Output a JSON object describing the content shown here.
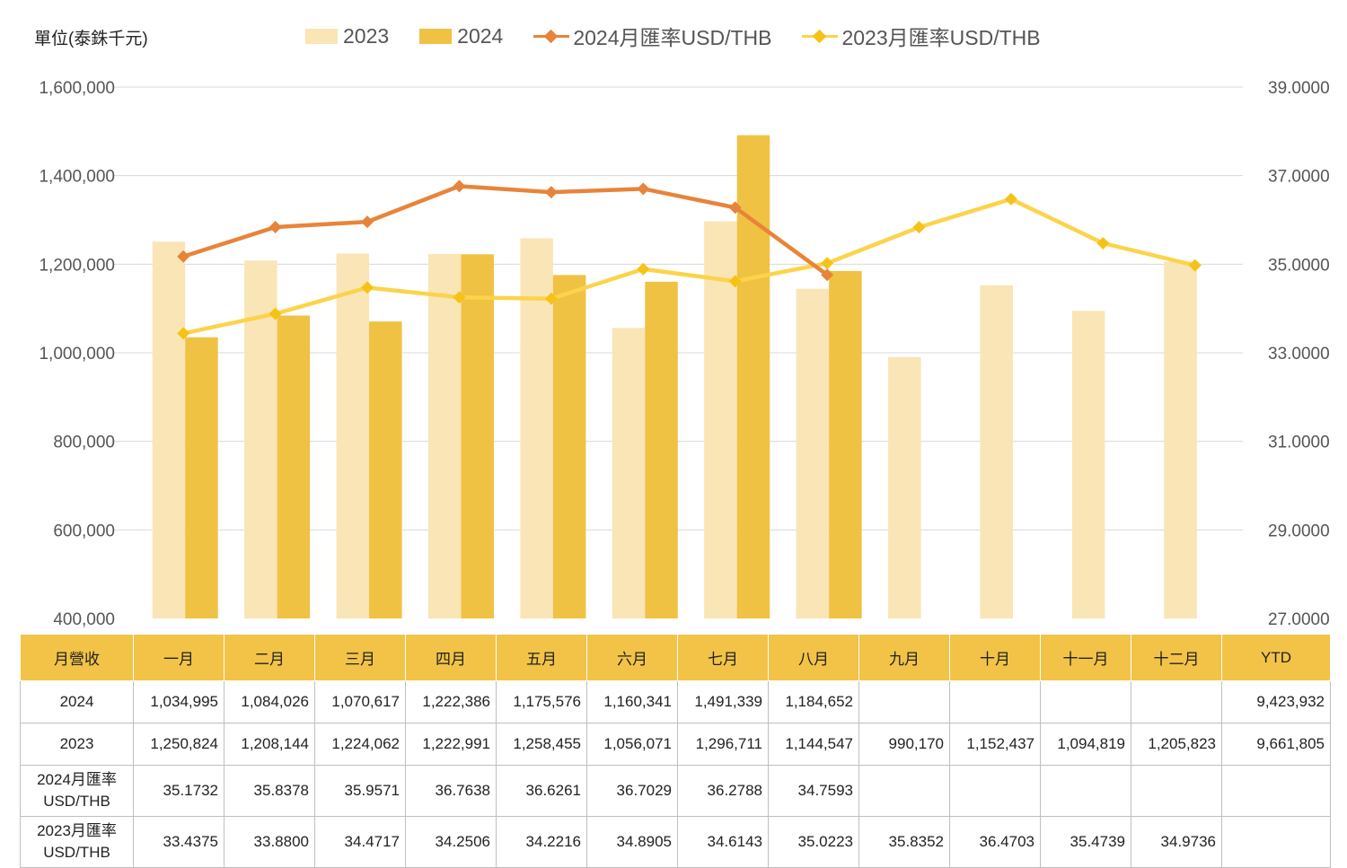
{
  "unit_label": "單位(泰銖千元)",
  "legend": {
    "bar_2023": "2023",
    "bar_2024": "2024",
    "line_2024": "2024月匯率USD/THB",
    "line_2023": "2023月匯率USD/THB"
  },
  "colors": {
    "bar_2023": "#F9E5B6",
    "bar_2024": "#F0C243",
    "line_2024": "#E8843A",
    "line_2023": "#FCD34A",
    "marker_2023": "#F5C316",
    "gridline": "#d9d9d9",
    "header_fill": "#F2C347"
  },
  "chart_data": {
    "type": "bar",
    "categories": [
      "一月",
      "二月",
      "三月",
      "四月",
      "五月",
      "六月",
      "七月",
      "八月",
      "九月",
      "十月",
      "十一月",
      "十二月"
    ],
    "series": [
      {
        "name": "2023",
        "type": "bar",
        "axis": "left",
        "values": [
          1250824,
          1208144,
          1224062,
          1222991,
          1258455,
          1056071,
          1296711,
          1144547,
          990170,
          1152437,
          1094819,
          1205823
        ]
      },
      {
        "name": "2024",
        "type": "bar",
        "axis": "left",
        "values": [
          1034995,
          1084026,
          1070617,
          1222386,
          1175576,
          1160341,
          1491339,
          1184652,
          null,
          null,
          null,
          null
        ]
      },
      {
        "name": "2024月匯率USD/THB",
        "type": "line",
        "axis": "right",
        "values": [
          35.1732,
          35.8378,
          35.9571,
          36.7638,
          36.6261,
          36.7029,
          36.2788,
          34.7593,
          null,
          null,
          null,
          null
        ]
      },
      {
        "name": "2023月匯率USD/THB",
        "type": "line",
        "axis": "right",
        "values": [
          33.4375,
          33.88,
          34.4717,
          34.2506,
          34.2216,
          34.8905,
          34.6143,
          35.0223,
          35.8352,
          36.4703,
          35.4739,
          34.9736
        ]
      }
    ],
    "y_left": {
      "min": 400000,
      "max": 1600000,
      "ticks": [
        "400,000",
        "600,000",
        "800,000",
        "1,000,000",
        "1,200,000",
        "1,400,000",
        "1,600,000"
      ]
    },
    "y_right": {
      "min": 27,
      "max": 39,
      "ticks": [
        "27.0000",
        "29.0000",
        "31.0000",
        "33.0000",
        "35.0000",
        "37.0000",
        "39.0000"
      ]
    },
    "grid": true,
    "legend_position": "top"
  },
  "table": {
    "header": [
      "月營收",
      "一月",
      "二月",
      "三月",
      "四月",
      "五月",
      "六月",
      "七月",
      "八月",
      "九月",
      "十月",
      "十一月",
      "十二月",
      "YTD"
    ],
    "rows": [
      {
        "label": [
          "2024"
        ],
        "cells": [
          "1,034,995",
          "1,084,026",
          "1,070,617",
          "1,222,386",
          "1,175,576",
          "1,160,341",
          "1,491,339",
          "1,184,652",
          "",
          "",
          "",
          "",
          "9,423,932"
        ]
      },
      {
        "label": [
          "2023"
        ],
        "cells": [
          "1,250,824",
          "1,208,144",
          "1,224,062",
          "1,222,991",
          "1,258,455",
          "1,056,071",
          "1,296,711",
          "1,144,547",
          "990,170",
          "1,152,437",
          "1,094,819",
          "1,205,823",
          "9,661,805"
        ]
      },
      {
        "label": [
          "2024月匯率",
          "USD/THB"
        ],
        "cells": [
          "35.1732",
          "35.8378",
          "35.9571",
          "36.7638",
          "36.6261",
          "36.7029",
          "36.2788",
          "34.7593",
          "",
          "",
          "",
          "",
          ""
        ]
      },
      {
        "label": [
          "2023月匯率",
          "USD/THB"
        ],
        "cells": [
          "33.4375",
          "33.8800",
          "34.4717",
          "34.2506",
          "34.2216",
          "34.8905",
          "34.6143",
          "35.0223",
          "35.8352",
          "36.4703",
          "35.4739",
          "34.9736",
          ""
        ]
      }
    ]
  }
}
